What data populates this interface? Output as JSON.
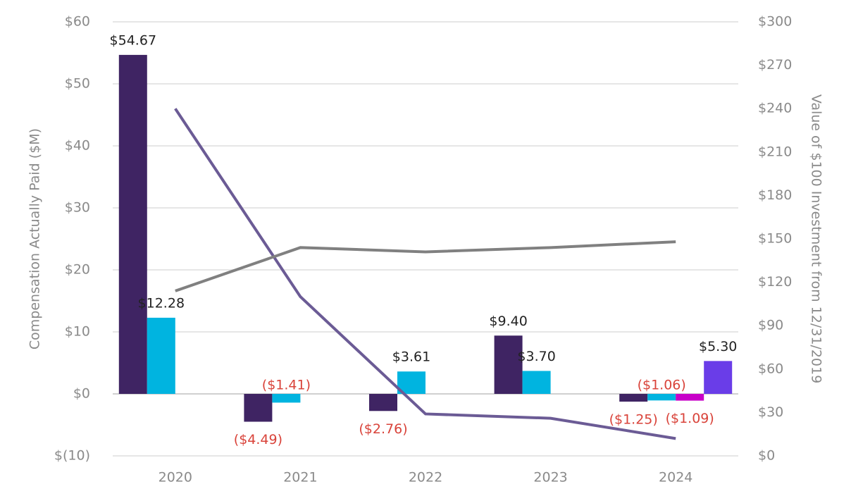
{
  "chart_data": {
    "type": "bar",
    "categories": [
      "2020",
      "2021",
      "2022",
      "2023",
      "2024"
    ],
    "ylabel": "Compensation Actually Paid ($M)",
    "y2label": "Value of $100 Investment from 12/31/2019",
    "ylim": [
      -10,
      60
    ],
    "yticks": [
      {
        "value": -10,
        "label": "$(10)"
      },
      {
        "value": 0,
        "label": "$0"
      },
      {
        "value": 10,
        "label": "$10"
      },
      {
        "value": 20,
        "label": "$20"
      },
      {
        "value": 30,
        "label": "$30"
      },
      {
        "value": 40,
        "label": "$40"
      },
      {
        "value": 50,
        "label": "$50"
      },
      {
        "value": 60,
        "label": "$60"
      }
    ],
    "y2lim": [
      0,
      300
    ],
    "y2ticks": [
      {
        "value": 0,
        "label": "$0"
      },
      {
        "value": 30,
        "label": "$30"
      },
      {
        "value": 60,
        "label": "$60"
      },
      {
        "value": 90,
        "label": "$90"
      },
      {
        "value": 120,
        "label": "$120"
      },
      {
        "value": 150,
        "label": "$150"
      },
      {
        "value": 180,
        "label": "$180"
      },
      {
        "value": 210,
        "label": "$210"
      },
      {
        "value": 240,
        "label": "$240"
      },
      {
        "value": 270,
        "label": "$270"
      },
      {
        "value": 300,
        "label": "$300"
      }
    ],
    "grid": true,
    "series": [
      {
        "color": "#3f2463",
        "values": [
          54.67,
          -4.49,
          -2.76,
          9.4,
          -1.25
        ],
        "value_labels": [
          "$54.67",
          "($4.49)",
          "($2.76)",
          "$9.40",
          "($1.25)"
        ]
      },
      {
        "color": "#00b4e0",
        "values": [
          12.28,
          -1.41,
          3.61,
          3.7,
          -1.06
        ],
        "value_labels": [
          "$12.28",
          "($1.41)",
          "$3.61",
          "$3.70",
          "($1.06)"
        ]
      },
      {
        "color": "#c800c8",
        "values": [
          null,
          null,
          null,
          null,
          -1.09
        ],
        "value_labels": [
          null,
          null,
          null,
          null,
          "($1.09)"
        ]
      },
      {
        "color": "#6a3de8",
        "values": [
          null,
          null,
          null,
          null,
          5.3
        ],
        "value_labels": [
          null,
          null,
          null,
          null,
          "$5.30"
        ]
      },
      {
        "type": "line",
        "axis": "y2",
        "color": "#6b5b95",
        "values": [
          240,
          110,
          29,
          26,
          12
        ]
      },
      {
        "type": "line",
        "axis": "y2",
        "color": "#808080",
        "values": [
          114,
          144,
          141,
          144,
          148
        ]
      }
    ]
  }
}
